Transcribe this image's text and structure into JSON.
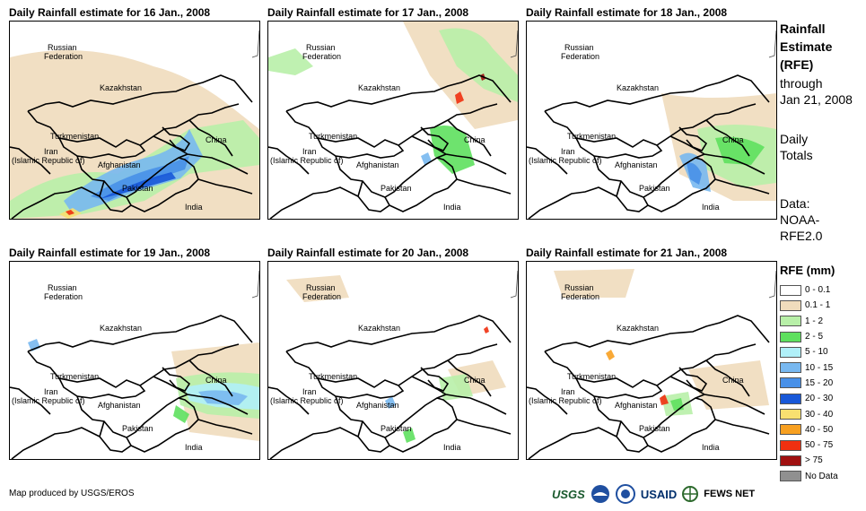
{
  "panels": [
    {
      "title": "Daily Rainfall estimate for 16 Jan., 2008",
      "rain": "heavy-southwest"
    },
    {
      "title": "Daily Rainfall estimate for 17 Jan., 2008",
      "rain": "north-east"
    },
    {
      "title": "Daily Rainfall estimate for 18 Jan., 2008",
      "rain": "east"
    },
    {
      "title": "Daily Rainfall estimate for 19 Jan., 2008",
      "rain": "east-band"
    },
    {
      "title": "Daily Rainfall estimate for 20 Jan., 2008",
      "rain": "scattered"
    },
    {
      "title": "Daily Rainfall estimate for 21 Jan., 2008",
      "rain": "scattered-east"
    }
  ],
  "map_labels": {
    "russia1": "Russian",
    "russia2": "Federation",
    "kazakhstan": "Kazakhstan",
    "turkmenistan": "Turkmenistan",
    "iran1": "Iran",
    "iran2": "(Islamic Republic of)",
    "afghanistan": "Afghanistan",
    "pakistan": "Pakistan",
    "china": "China",
    "india": "India"
  },
  "sidebar": {
    "title_lines": [
      "Rainfall",
      "Estimate",
      "(RFE)"
    ],
    "through_label": "through",
    "through_date": "Jan 21, 2008",
    "totals_lines": [
      "Daily",
      "Totals"
    ],
    "data_lines": [
      "Data:",
      "NOAA-",
      "RFE2.0"
    ]
  },
  "legend": {
    "title": "RFE (mm)",
    "items": [
      {
        "label": "0 - 0.1",
        "color": "#ffffff"
      },
      {
        "label": "0.1 - 1",
        "color": "#f0dcbc"
      },
      {
        "label": "1 - 2",
        "color": "#b8f0a8"
      },
      {
        "label": "2 - 5",
        "color": "#5ee05e"
      },
      {
        "label": "5 - 10",
        "color": "#b0f0f8"
      },
      {
        "label": "10 - 15",
        "color": "#78b8f0"
      },
      {
        "label": "15 - 20",
        "color": "#4890e8"
      },
      {
        "label": "20 - 30",
        "color": "#1858d8"
      },
      {
        "label": "30 - 40",
        "color": "#f8e070"
      },
      {
        "label": "40 - 50",
        "color": "#f8a020"
      },
      {
        "label": "50 - 75",
        "color": "#f03010"
      },
      {
        "label": "> 75",
        "color": "#a01010"
      },
      {
        "label": "No Data",
        "color": "#909090"
      }
    ]
  },
  "footer": {
    "credit": "Map produced by USGS/EROS",
    "logos": [
      "USGS",
      "NOAA",
      "USAID",
      "FEWS NET"
    ]
  }
}
